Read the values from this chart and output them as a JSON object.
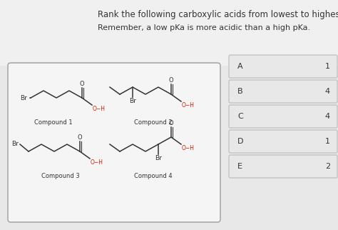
{
  "title": "Rank the following carboxylic acids from lowest to highest pKa.",
  "subtitle": "Remember, a low pKa is more acidic than a high pKa.",
  "bg_color": "#e8e8e8",
  "box_bg": "#f5f5f5",
  "answer_labels": [
    "A",
    "B",
    "C",
    "D",
    "E"
  ],
  "answer_values": [
    "1",
    "4",
    "4",
    "1",
    "2"
  ],
  "title_fontsize": 8.5,
  "subtitle_fontsize": 8.0,
  "label_fontsize": 7.5,
  "red": "#cc2200",
  "dark": "#333333"
}
